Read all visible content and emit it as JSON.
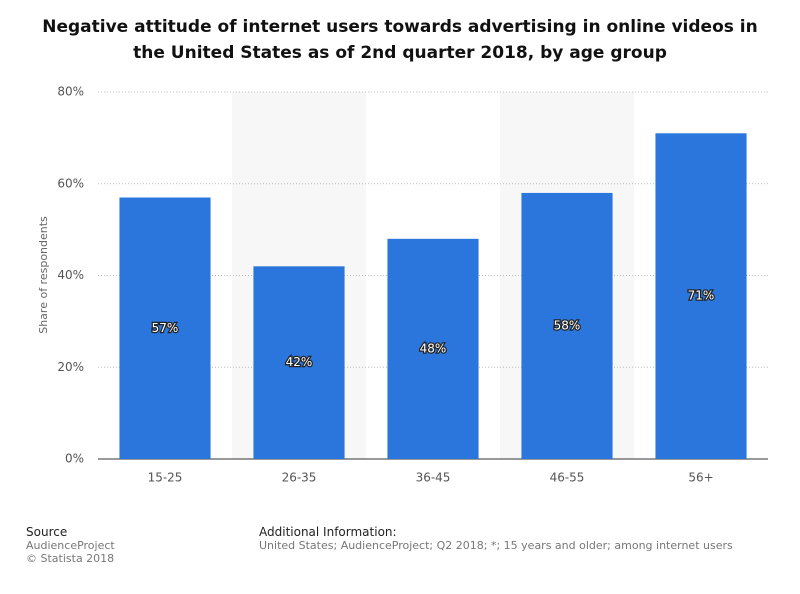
{
  "chart_data": {
    "type": "bar",
    "title": "Negative attitude of internet users towards advertising in online videos in the United States as of 2nd quarter 2018, by age group",
    "y_label": "Share of respondents",
    "categories": [
      "15-25",
      "26-35",
      "36-45",
      "46-55",
      "56+"
    ],
    "values": [
      57,
      42,
      48,
      58,
      71
    ],
    "value_labels": [
      "57%",
      "42%",
      "48%",
      "58%",
      "71%"
    ],
    "color": "#2a76dd",
    "ylim": [
      0,
      80
    ],
    "yticks": [
      {
        "value": 0,
        "label": "0%"
      },
      {
        "value": 20,
        "label": "20%"
      },
      {
        "value": 40,
        "label": "40%"
      },
      {
        "value": 60,
        "label": "60%"
      },
      {
        "value": 80,
        "label": "80%"
      }
    ],
    "grid": true
  },
  "footer": {
    "source_title": "Source",
    "source_lines": [
      "AudienceProject",
      "© Statista 2018"
    ],
    "info_title": "Additional Information:",
    "info_text": "United States; AudienceProject; Q2 2018; *; 15 years and older; among internet users"
  }
}
